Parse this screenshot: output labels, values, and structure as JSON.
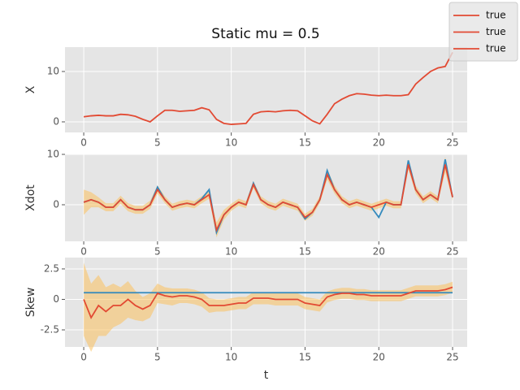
{
  "chart_data": [
    {
      "type": "line",
      "title": "Static mu = 0.5",
      "y_label": "X",
      "x": [
        0,
        0.5,
        1,
        1.5,
        2,
        2.5,
        3,
        3.5,
        4,
        4.5,
        5,
        5.5,
        6,
        6.5,
        7,
        7.5,
        8,
        8.5,
        9,
        9.5,
        10,
        10.5,
        11,
        11.5,
        12,
        12.5,
        13,
        13.5,
        14,
        14.5,
        15,
        15.5,
        16,
        16.5,
        17,
        17.5,
        18,
        18.5,
        19,
        19.5,
        20,
        20.5,
        21,
        21.5,
        22,
        22.5,
        23,
        23.5,
        24,
        24.5,
        25
      ],
      "series": [
        {
          "name": "true",
          "color": "#E24A33",
          "values": [
            1,
            1.2,
            1.3,
            1.2,
            1.2,
            1.5,
            1.4,
            1.1,
            0.5,
            0,
            1.2,
            2.3,
            2.3,
            2.1,
            2.2,
            2.3,
            2.8,
            2.4,
            0.5,
            -0.3,
            -0.5,
            -0.4,
            -0.3,
            1.5,
            2,
            2.1,
            2,
            2.2,
            2.3,
            2.2,
            1.2,
            0.2,
            -0.4,
            1.5,
            3.6,
            4.5,
            5.2,
            5.6,
            5.5,
            5.3,
            5.2,
            5.3,
            5.2,
            5.2,
            5.4,
            7.5,
            8.8,
            10,
            10.7,
            11,
            13.8
          ]
        }
      ],
      "xlim": [
        -1.27,
        25.99
      ],
      "xticks": [
        0,
        5,
        10,
        15,
        20,
        25
      ],
      "ylim": [
        -2.1,
        14.84
      ],
      "yticks": [
        0,
        10
      ],
      "grid": true,
      "legend": "upper right"
    },
    {
      "type": "line",
      "y_label": "Xdot",
      "x": [
        0,
        0.5,
        1,
        1.5,
        2,
        2.5,
        3,
        3.5,
        4,
        4.5,
        5,
        5.5,
        6,
        6.5,
        7,
        7.5,
        8,
        8.5,
        9,
        9.5,
        10,
        10.5,
        11,
        11.5,
        12,
        12.5,
        13,
        13.5,
        14,
        14.5,
        15,
        15.5,
        16,
        16.5,
        17,
        17.5,
        18,
        18.5,
        19,
        19.5,
        20,
        20.5,
        21,
        21.5,
        22,
        22.5,
        23,
        23.5,
        24,
        24.5,
        25
      ],
      "series": [
        {
          "color": "#348ABD",
          "values": [
            0.5,
            1,
            0.5,
            -0.5,
            -0.5,
            1,
            -0.5,
            -1,
            -1,
            0,
            3.5,
            1,
            -0.5,
            0,
            0.3,
            0,
            1.2,
            3,
            -5.5,
            -2,
            -0.5,
            0.5,
            0,
            4.3,
            1,
            0,
            -0.5,
            0.5,
            0,
            -0.5,
            -2.8,
            -1.5,
            1,
            6.8,
            3,
            1,
            0,
            0.5,
            0,
            -0.5,
            -2.5,
            0.5,
            0,
            0,
            8.8,
            3,
            1,
            2,
            1,
            9,
            1.5
          ]
        },
        {
          "name": "true",
          "color": "#E24A33",
          "band_color": "#FBC15E",
          "values": [
            0.5,
            1,
            0.5,
            -0.5,
            -0.5,
            1,
            -0.5,
            -1,
            -1,
            0,
            3,
            1,
            -0.5,
            0,
            0.3,
            0,
            1,
            2,
            -5,
            -2,
            -0.5,
            0.5,
            0,
            4,
            1,
            0,
            -0.5,
            0.5,
            0,
            -0.5,
            -2.5,
            -1.5,
            1,
            6,
            3,
            1,
            0,
            0.5,
            0,
            -0.5,
            0,
            0.5,
            0,
            0,
            8,
            3,
            1,
            2,
            1,
            8,
            1.5
          ],
          "errors": [
            2.5,
            1.5,
            1,
            0.8,
            0.8,
            0.8,
            0.8,
            0.8,
            0.8,
            0.8,
            0.8,
            0.7,
            0.7,
            0.7,
            0.7,
            0.7,
            0.7,
            0.8,
            1.5,
            1,
            0.7,
            0.7,
            0.7,
            0.7,
            0.7,
            0.7,
            0.7,
            0.7,
            0.7,
            0.7,
            0.7,
            0.7,
            0.7,
            1,
            0.8,
            0.7,
            0.7,
            0.7,
            0.7,
            0.7,
            0.7,
            0.7,
            0.7,
            0.7,
            1,
            0.8,
            0.7,
            0.7,
            0.7,
            1.5,
            0.7
          ]
        }
      ],
      "xlim": [
        -1.27,
        25.99
      ],
      "xticks": [
        0,
        5,
        10,
        15,
        20,
        25
      ],
      "ylim": [
        -7.26,
        10
      ],
      "yticks": [
        0,
        10
      ],
      "grid": true
    },
    {
      "type": "line",
      "y_label": "Skew",
      "x_label": "t",
      "x": [
        0,
        0.5,
        1,
        1.5,
        2,
        2.5,
        3,
        3.5,
        4,
        4.5,
        5,
        5.5,
        6,
        6.5,
        7,
        7.5,
        8,
        8.5,
        9,
        9.5,
        10,
        10.5,
        11,
        11.5,
        12,
        12.5,
        13,
        13.5,
        14,
        14.5,
        15,
        15.5,
        16,
        16.5,
        17,
        17.5,
        18,
        18.5,
        19,
        19.5,
        20,
        20.5,
        21,
        21.5,
        22,
        22.5,
        23,
        23.5,
        24,
        24.5,
        25
      ],
      "series": [
        {
          "color": "#348ABD",
          "values": [
            0.55,
            0.55,
            0.55,
            0.55,
            0.55,
            0.55,
            0.55,
            0.55,
            0.55,
            0.55,
            0.55,
            0.55,
            0.55,
            0.55,
            0.55,
            0.55,
            0.55,
            0.55,
            0.55,
            0.55,
            0.55,
            0.55,
            0.55,
            0.55,
            0.55,
            0.55,
            0.55,
            0.55,
            0.55,
            0.55,
            0.55,
            0.55,
            0.55,
            0.55,
            0.55,
            0.55,
            0.55,
            0.55,
            0.55,
            0.55,
            0.55,
            0.55,
            0.55,
            0.55,
            0.55,
            0.55,
            0.55,
            0.55,
            0.55,
            0.55,
            0.55
          ]
        },
        {
          "name": "true",
          "color": "#E24A33",
          "band_color": "#FBC15E",
          "values": [
            0,
            -1.5,
            -0.5,
            -1,
            -0.5,
            -0.5,
            0,
            -0.5,
            -0.8,
            -0.5,
            0.5,
            0.3,
            0.2,
            0.3,
            0.3,
            0.2,
            0,
            -0.5,
            -0.5,
            -0.5,
            -0.4,
            -0.3,
            -0.3,
            0.1,
            0.1,
            0.1,
            0,
            0,
            0,
            0,
            -0.3,
            -0.4,
            -0.5,
            0.2,
            0.4,
            0.5,
            0.5,
            0.4,
            0.4,
            0.3,
            0.3,
            0.3,
            0.3,
            0.3,
            0.5,
            0.7,
            0.7,
            0.7,
            0.7,
            0.8,
            1
          ],
          "errors": [
            3,
            2.8,
            2.5,
            2,
            1.8,
            1.5,
            1.5,
            1.2,
            1,
            1,
            0.8,
            0.7,
            0.7,
            0.6,
            0.6,
            0.6,
            0.6,
            0.6,
            0.5,
            0.5,
            0.5,
            0.5,
            0.5,
            0.5,
            0.5,
            0.5,
            0.5,
            0.5,
            0.5,
            0.5,
            0.5,
            0.5,
            0.5,
            0.45,
            0.45,
            0.45,
            0.45,
            0.45,
            0.45,
            0.45,
            0.45,
            0.45,
            0.45,
            0.45,
            0.45,
            0.45,
            0.45,
            0.45,
            0.45,
            0.45,
            0.45
          ]
        }
      ],
      "xlim": [
        -1.27,
        25.99
      ],
      "xticks": [
        0,
        5,
        10,
        15,
        20,
        25
      ],
      "ylim": [
        -3.9,
        3.43
      ],
      "yticks": [
        2.5,
        0,
        -2.5
      ],
      "grid": true
    }
  ]
}
